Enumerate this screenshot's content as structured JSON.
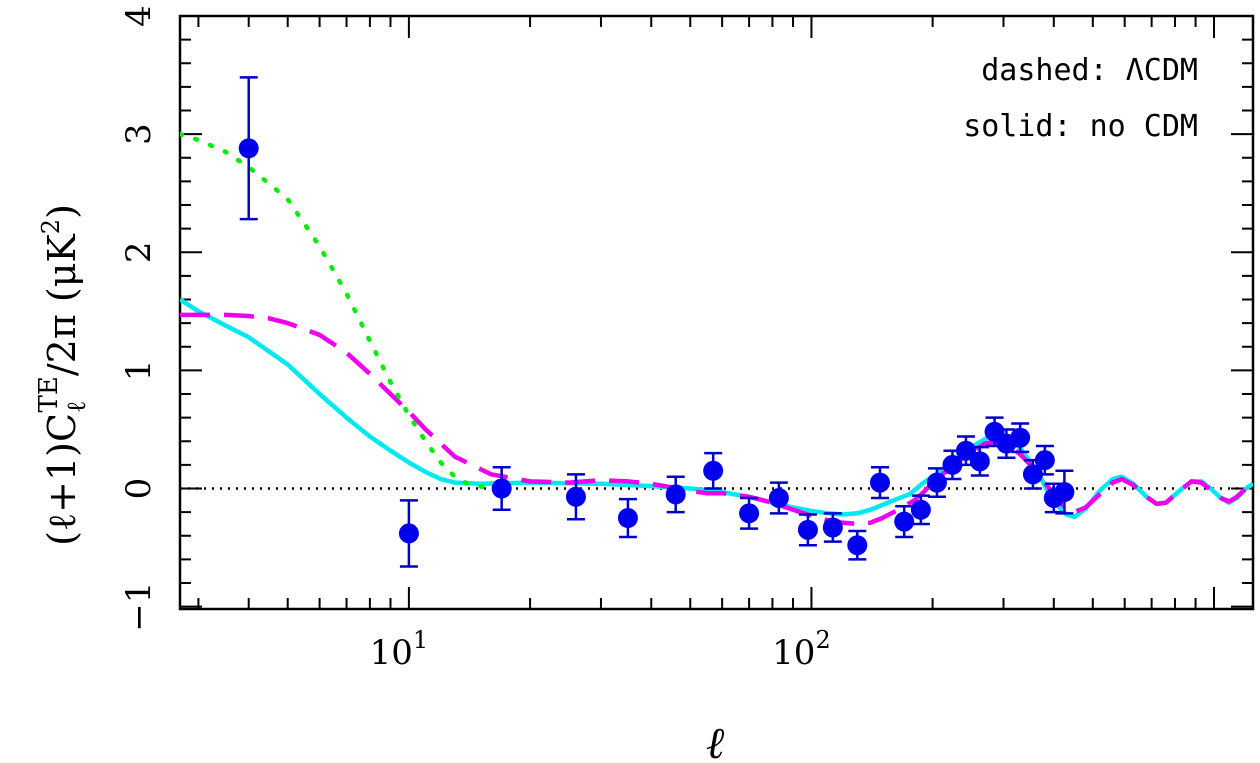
{
  "chart_data": {
    "type": "scatter",
    "title": "",
    "xlabel": "ℓ",
    "ylabel": "(ℓ+1)C_ℓ^TE/2π (μK²)",
    "ylabel_parts": {
      "prefix": "(ℓ+1)C",
      "sub": "ℓ",
      "sup": "TE",
      "suffix": "/2π (μK",
      "sq": "2",
      "close": ")"
    },
    "xscale": "log",
    "xlim": [
      2.7,
      1250
    ],
    "ylim": [
      -1.02,
      4
    ],
    "x_ticks": [
      {
        "value": 10,
        "base": "10",
        "exp": "1"
      },
      {
        "value": 100,
        "base": "10",
        "exp": "2"
      }
    ],
    "y_ticks": [
      {
        "value": -1,
        "label": "−1"
      },
      {
        "value": 0,
        "label": "0"
      },
      {
        "value": 1,
        "label": "1"
      },
      {
        "value": 2,
        "label": "2"
      },
      {
        "value": 3,
        "label": "3"
      },
      {
        "value": 4,
        "label": "4"
      }
    ],
    "zero_line": true,
    "legend": {
      "line1": "dashed: ΛCDM",
      "line2": "solid: no CDM",
      "position": "top-right"
    },
    "colors": {
      "points": "#0000ee",
      "errorbars": "#0000cc",
      "solid": "#00e8f0",
      "dashed": "#ee00ee",
      "dotted": "#00ee00"
    },
    "points": [
      {
        "x": 4,
        "y": 2.88,
        "err": 0.6
      },
      {
        "x": 10,
        "y": -0.38,
        "err": 0.28
      },
      {
        "x": 17,
        "y": 0.0,
        "err": 0.18
      },
      {
        "x": 26,
        "y": -0.07,
        "err": 0.19
      },
      {
        "x": 35,
        "y": -0.25,
        "err": 0.16
      },
      {
        "x": 46,
        "y": -0.05,
        "err": 0.15
      },
      {
        "x": 57,
        "y": 0.15,
        "err": 0.15
      },
      {
        "x": 70,
        "y": -0.21,
        "err": 0.13
      },
      {
        "x": 83,
        "y": -0.08,
        "err": 0.13
      },
      {
        "x": 98,
        "y": -0.35,
        "err": 0.13
      },
      {
        "x": 113,
        "y": -0.33,
        "err": 0.12
      },
      {
        "x": 130,
        "y": -0.48,
        "err": 0.12
      },
      {
        "x": 148,
        "y": 0.05,
        "err": 0.13
      },
      {
        "x": 170,
        "y": -0.28,
        "err": 0.13
      },
      {
        "x": 187,
        "y": -0.18,
        "err": 0.12
      },
      {
        "x": 205,
        "y": 0.05,
        "err": 0.12
      },
      {
        "x": 224,
        "y": 0.2,
        "err": 0.12
      },
      {
        "x": 242,
        "y": 0.32,
        "err": 0.12
      },
      {
        "x": 262,
        "y": 0.23,
        "err": 0.12
      },
      {
        "x": 285,
        "y": 0.48,
        "err": 0.12
      },
      {
        "x": 305,
        "y": 0.38,
        "err": 0.12
      },
      {
        "x": 330,
        "y": 0.43,
        "err": 0.12
      },
      {
        "x": 355,
        "y": 0.12,
        "err": 0.12
      },
      {
        "x": 380,
        "y": 0.24,
        "err": 0.12
      },
      {
        "x": 400,
        "y": -0.08,
        "err": 0.12
      },
      {
        "x": 425,
        "y": -0.03,
        "err": 0.18
      }
    ],
    "series": [
      {
        "style": "solid",
        "points": [
          [
            2.7,
            1.6
          ],
          [
            3,
            1.5
          ],
          [
            3.5,
            1.38
          ],
          [
            4,
            1.28
          ],
          [
            5,
            1.05
          ],
          [
            6,
            0.8
          ],
          [
            7,
            0.6
          ],
          [
            8,
            0.44
          ],
          [
            9,
            0.32
          ],
          [
            10,
            0.22
          ],
          [
            11,
            0.14
          ],
          [
            12,
            0.08
          ],
          [
            13,
            0.05
          ],
          [
            15,
            0.04
          ],
          [
            20,
            0.05
          ],
          [
            30,
            0.04
          ],
          [
            40,
            0.02
          ],
          [
            50,
            0.0
          ],
          [
            60,
            -0.03
          ],
          [
            70,
            -0.07
          ],
          [
            80,
            -0.12
          ],
          [
            90,
            -0.16
          ],
          [
            100,
            -0.19
          ],
          [
            110,
            -0.21
          ],
          [
            120,
            -0.22
          ],
          [
            130,
            -0.21
          ],
          [
            140,
            -0.18
          ],
          [
            150,
            -0.14
          ],
          [
            160,
            -0.1
          ],
          [
            175,
            -0.05
          ],
          [
            190,
            0.05
          ],
          [
            210,
            0.15
          ],
          [
            230,
            0.25
          ],
          [
            250,
            0.35
          ],
          [
            270,
            0.42
          ],
          [
            290,
            0.45
          ],
          [
            310,
            0.42
          ],
          [
            330,
            0.34
          ],
          [
            350,
            0.22
          ],
          [
            370,
            0.1
          ],
          [
            390,
            -0.05
          ],
          [
            410,
            -0.15
          ],
          [
            430,
            -0.22
          ],
          [
            450,
            -0.24
          ],
          [
            480,
            -0.17
          ],
          [
            520,
            -0.02
          ],
          [
            560,
            0.08
          ],
          [
            590,
            0.1
          ],
          [
            630,
            0.04
          ],
          [
            680,
            -0.07
          ],
          [
            720,
            -0.13
          ],
          [
            760,
            -0.12
          ],
          [
            820,
            -0.02
          ],
          [
            880,
            0.06
          ],
          [
            930,
            0.06
          ],
          [
            980,
            0.0
          ],
          [
            1040,
            -0.08
          ],
          [
            1090,
            -0.12
          ],
          [
            1140,
            -0.08
          ],
          [
            1200,
            0.0
          ],
          [
            1250,
            0.04
          ]
        ]
      },
      {
        "style": "dashed",
        "points": [
          [
            2.7,
            1.47
          ],
          [
            3,
            1.47
          ],
          [
            3.5,
            1.47
          ],
          [
            4,
            1.46
          ],
          [
            4.5,
            1.44
          ],
          [
            5,
            1.4
          ],
          [
            6,
            1.3
          ],
          [
            7,
            1.15
          ],
          [
            8,
            0.97
          ],
          [
            9,
            0.8
          ],
          [
            10,
            0.65
          ],
          [
            11,
            0.5
          ],
          [
            12,
            0.38
          ],
          [
            13,
            0.27
          ],
          [
            16,
            0.12
          ],
          [
            20,
            0.06
          ],
          [
            25,
            0.05
          ],
          [
            30,
            0.07
          ],
          [
            35,
            0.06
          ],
          [
            40,
            0.04
          ],
          [
            45,
            0.01
          ],
          [
            50,
            -0.02
          ],
          [
            55,
            -0.04
          ],
          [
            60,
            -0.04
          ],
          [
            70,
            -0.07
          ],
          [
            80,
            -0.12
          ],
          [
            90,
            -0.18
          ],
          [
            100,
            -0.23
          ],
          [
            110,
            -0.27
          ],
          [
            120,
            -0.29
          ],
          [
            130,
            -0.3
          ],
          [
            140,
            -0.29
          ],
          [
            150,
            -0.25
          ],
          [
            160,
            -0.2
          ],
          [
            170,
            -0.15
          ],
          [
            180,
            -0.1
          ],
          [
            190,
            -0.03
          ],
          [
            200,
            0.05
          ],
          [
            215,
            0.14
          ],
          [
            230,
            0.22
          ],
          [
            250,
            0.31
          ],
          [
            270,
            0.38
          ],
          [
            290,
            0.4
          ],
          [
            310,
            0.36
          ],
          [
            330,
            0.29
          ],
          [
            350,
            0.2
          ],
          [
            370,
            0.1
          ],
          [
            390,
            0.0
          ],
          [
            410,
            -0.1
          ],
          [
            430,
            -0.17
          ],
          [
            450,
            -0.2
          ],
          [
            480,
            -0.16
          ],
          [
            520,
            -0.05
          ],
          [
            560,
            0.05
          ],
          [
            590,
            0.08
          ],
          [
            630,
            0.03
          ],
          [
            680,
            -0.07
          ],
          [
            720,
            -0.13
          ],
          [
            760,
            -0.12
          ],
          [
            820,
            -0.02
          ],
          [
            880,
            0.06
          ],
          [
            930,
            0.05
          ],
          [
            980,
            -0.01
          ],
          [
            1040,
            -0.08
          ],
          [
            1090,
            -0.11
          ],
          [
            1140,
            -0.07
          ],
          [
            1200,
            0.0
          ],
          [
            1250,
            0.04
          ]
        ]
      },
      {
        "style": "dotted",
        "points": [
          [
            2.7,
            3.0
          ],
          [
            3,
            2.95
          ],
          [
            3.5,
            2.85
          ],
          [
            4,
            2.72
          ],
          [
            5,
            2.45
          ],
          [
            6,
            2.05
          ],
          [
            7,
            1.65
          ],
          [
            8,
            1.25
          ],
          [
            9,
            0.9
          ],
          [
            10,
            0.62
          ],
          [
            11,
            0.4
          ],
          [
            12,
            0.22
          ],
          [
            13,
            0.1
          ],
          [
            14,
            0.04
          ],
          [
            16,
            0.0
          ]
        ]
      }
    ]
  }
}
